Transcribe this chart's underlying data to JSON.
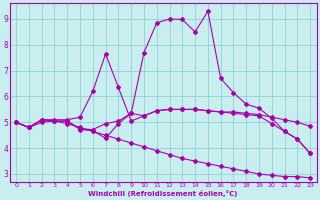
{
  "xlabel": "Windchill (Refroidissement éolien,°C)",
  "bg_color": "#c8eef0",
  "line_color": "#aa00aa",
  "xlim": [
    -0.5,
    23.5
  ],
  "ylim": [
    2.7,
    9.6
  ],
  "yticks": [
    3,
    4,
    5,
    6,
    7,
    8,
    9
  ],
  "xticks": [
    0,
    1,
    2,
    3,
    4,
    5,
    6,
    7,
    8,
    9,
    10,
    11,
    12,
    13,
    14,
    15,
    16,
    17,
    18,
    19,
    20,
    21,
    22,
    23
  ],
  "line1_x": [
    0,
    1,
    2,
    3,
    4,
    5,
    6,
    7,
    8,
    9,
    10,
    11,
    12,
    13,
    14,
    15,
    16,
    17,
    18,
    19,
    20,
    21,
    22,
    23
  ],
  "line1_y": [
    5.0,
    4.8,
    5.1,
    5.05,
    5.05,
    4.75,
    4.72,
    4.95,
    5.05,
    5.35,
    7.7,
    8.85,
    9.0,
    8.98,
    8.5,
    9.3,
    6.7,
    6.15,
    5.7,
    5.55,
    5.15,
    4.65,
    4.35,
    3.8
  ],
  "line2_x": [
    0,
    1,
    2,
    3,
    4,
    5,
    6,
    7,
    8,
    9,
    10,
    11,
    12,
    13,
    14,
    15,
    16,
    17,
    18,
    19,
    20,
    21,
    22,
    23
  ],
  "line2_y": [
    5.0,
    4.8,
    5.1,
    5.1,
    5.1,
    5.2,
    6.2,
    7.65,
    6.35,
    5.05,
    5.25,
    5.45,
    5.5,
    5.5,
    5.5,
    5.45,
    5.4,
    5.4,
    5.35,
    5.3,
    5.2,
    5.1,
    5.0,
    4.85
  ],
  "line3_x": [
    0,
    1,
    2,
    3,
    4,
    5,
    6,
    7,
    8,
    9,
    10,
    11,
    12,
    13,
    14,
    15,
    16,
    17,
    18,
    19,
    20,
    21,
    22,
    23
  ],
  "line3_y": [
    5.0,
    4.8,
    5.1,
    5.05,
    5.05,
    4.72,
    4.68,
    4.38,
    4.95,
    5.35,
    5.25,
    5.45,
    5.5,
    5.5,
    5.5,
    5.45,
    5.4,
    5.35,
    5.3,
    5.25,
    4.95,
    4.65,
    4.35,
    3.8
  ],
  "line4_x": [
    0,
    1,
    2,
    3,
    4,
    5,
    6,
    7,
    8,
    9,
    10,
    11,
    12,
    13,
    14,
    15,
    16,
    17,
    18,
    19,
    20,
    21,
    22,
    23
  ],
  "line4_y": [
    5.0,
    4.8,
    5.0,
    5.05,
    4.95,
    4.8,
    4.65,
    4.5,
    4.35,
    4.2,
    4.05,
    3.9,
    3.75,
    3.6,
    3.5,
    3.4,
    3.3,
    3.2,
    3.1,
    3.0,
    2.95,
    2.9,
    2.9,
    2.85
  ]
}
